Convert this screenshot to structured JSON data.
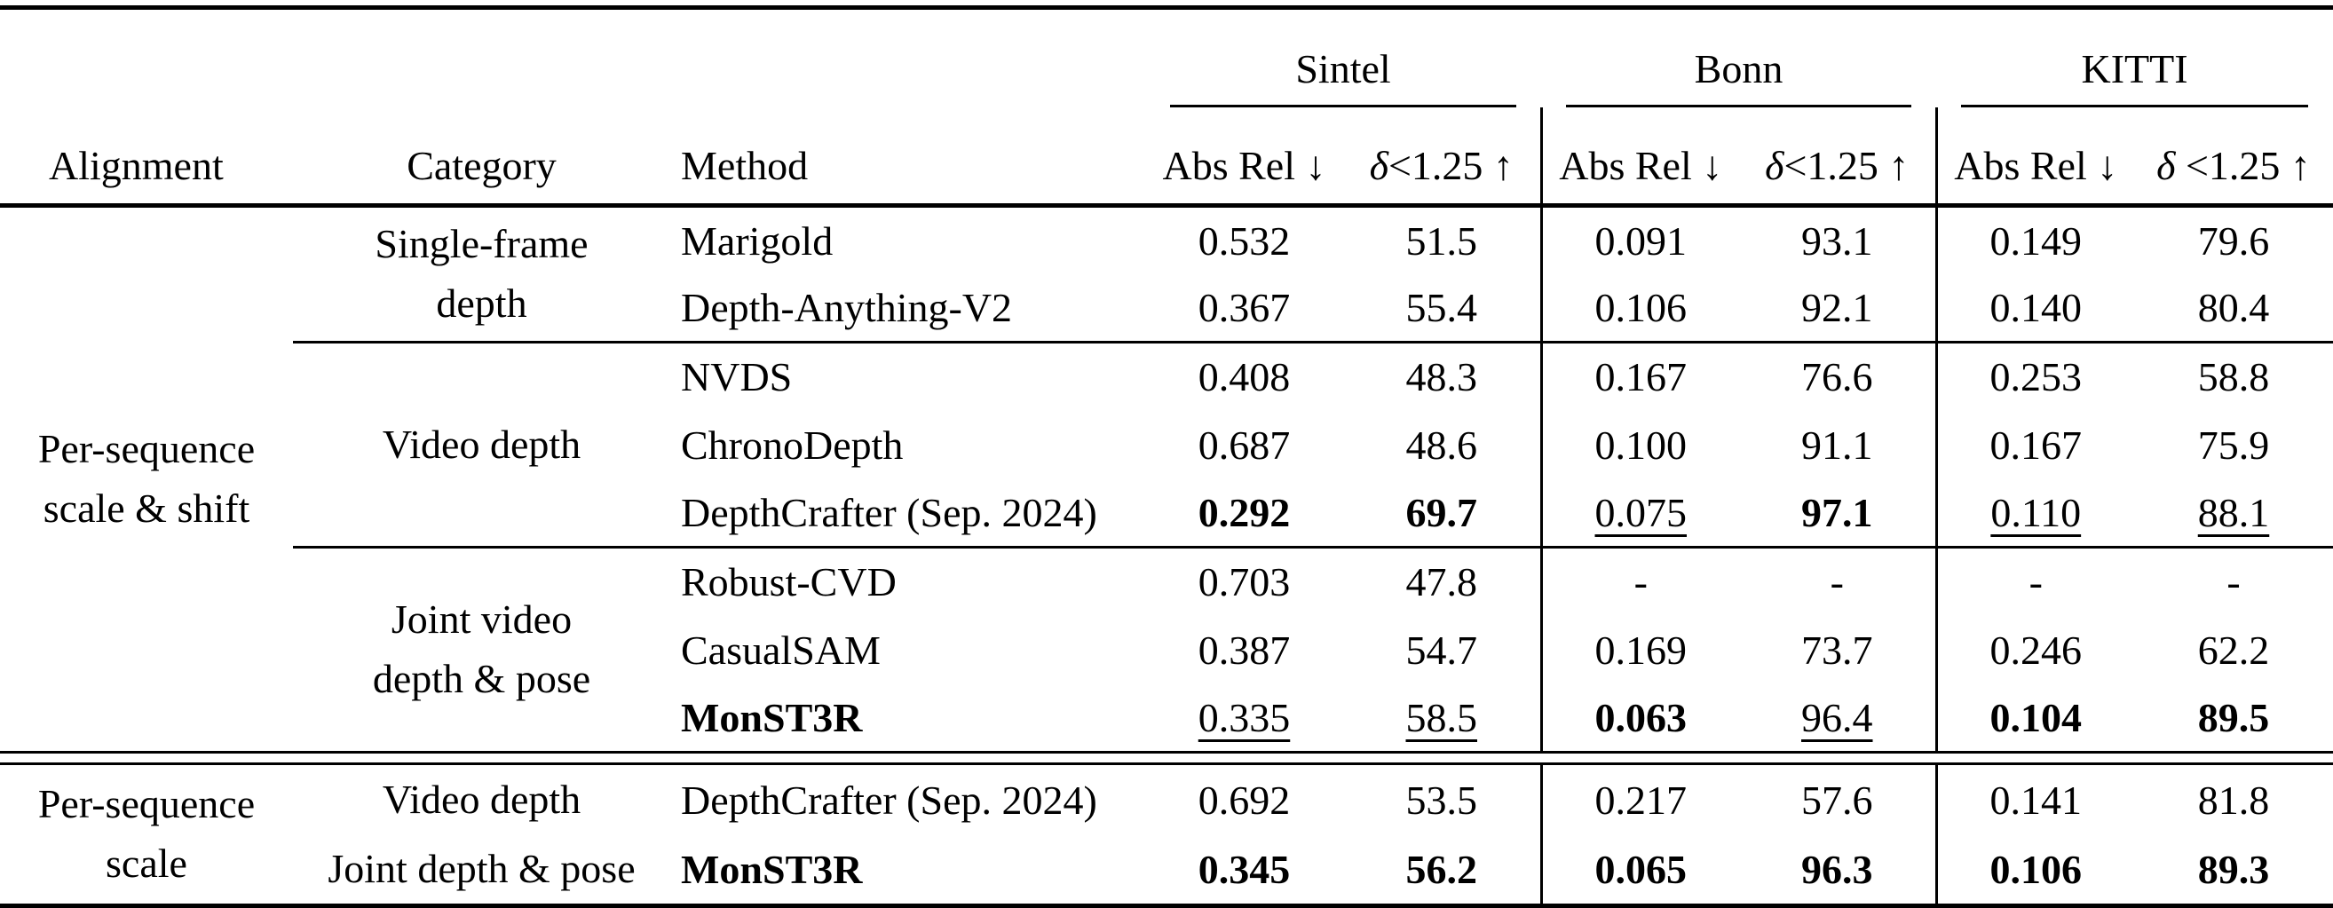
{
  "colors": {
    "text": "#000000",
    "rules": "#000000",
    "background": "#ffffff"
  },
  "table": {
    "headers": {
      "alignment": "Alignment",
      "category": "Category",
      "method": "Method"
    },
    "groups": [
      {
        "name": "Sintel",
        "metrics": [
          "Abs Rel ↓",
          "δ<1.25 ↑"
        ]
      },
      {
        "name": "Bonn",
        "metrics": [
          "Abs Rel ↓",
          "δ<1.25 ↑"
        ]
      },
      {
        "name": "KITTI",
        "metrics": [
          "Abs Rel ↓",
          "δ <1.25 ↑"
        ]
      }
    ],
    "sections": [
      {
        "alignment": "Per-sequence\nscale & shift",
        "groups": [
          {
            "category": "Single-frame\ndepth",
            "rows": [
              {
                "method": "Marigold",
                "bold_method": false,
                "values": [
                  {
                    "t": "0.532"
                  },
                  {
                    "t": "51.5"
                  },
                  {
                    "t": "0.091"
                  },
                  {
                    "t": "93.1"
                  },
                  {
                    "t": "0.149"
                  },
                  {
                    "t": "79.6"
                  }
                ]
              },
              {
                "method": "Depth-Anything-V2",
                "bold_method": false,
                "values": [
                  {
                    "t": "0.367"
                  },
                  {
                    "t": "55.4"
                  },
                  {
                    "t": "0.106"
                  },
                  {
                    "t": "92.1"
                  },
                  {
                    "t": "0.140"
                  },
                  {
                    "t": "80.4"
                  }
                ]
              }
            ]
          },
          {
            "category": "Video depth",
            "rows": [
              {
                "method": "NVDS",
                "bold_method": false,
                "values": [
                  {
                    "t": "0.408"
                  },
                  {
                    "t": "48.3"
                  },
                  {
                    "t": "0.167"
                  },
                  {
                    "t": "76.6"
                  },
                  {
                    "t": "0.253"
                  },
                  {
                    "t": "58.8"
                  }
                ]
              },
              {
                "method": "ChronoDepth",
                "bold_method": false,
                "values": [
                  {
                    "t": "0.687"
                  },
                  {
                    "t": "48.6"
                  },
                  {
                    "t": "0.100"
                  },
                  {
                    "t": "91.1"
                  },
                  {
                    "t": "0.167"
                  },
                  {
                    "t": "75.9"
                  }
                ]
              },
              {
                "method": "DepthCrafter (Sep. 2024)",
                "bold_method": false,
                "values": [
                  {
                    "t": "0.292",
                    "s": "bold"
                  },
                  {
                    "t": "69.7",
                    "s": "bold"
                  },
                  {
                    "t": "0.075",
                    "s": "underline"
                  },
                  {
                    "t": "97.1",
                    "s": "bold"
                  },
                  {
                    "t": "0.110",
                    "s": "underline"
                  },
                  {
                    "t": "88.1",
                    "s": "underline"
                  }
                ]
              }
            ]
          },
          {
            "category": "Joint video\ndepth & pose",
            "rows": [
              {
                "method": "Robust-CVD",
                "bold_method": false,
                "values": [
                  {
                    "t": "0.703"
                  },
                  {
                    "t": "47.8"
                  },
                  {
                    "t": "-"
                  },
                  {
                    "t": "-"
                  },
                  {
                    "t": "-"
                  },
                  {
                    "t": "-"
                  }
                ]
              },
              {
                "method": "CasualSAM",
                "bold_method": false,
                "values": [
                  {
                    "t": "0.387"
                  },
                  {
                    "t": "54.7"
                  },
                  {
                    "t": "0.169"
                  },
                  {
                    "t": "73.7"
                  },
                  {
                    "t": "0.246"
                  },
                  {
                    "t": "62.2"
                  }
                ]
              },
              {
                "method": "MonST3R",
                "bold_method": true,
                "values": [
                  {
                    "t": "0.335",
                    "s": "underline"
                  },
                  {
                    "t": "58.5",
                    "s": "underline"
                  },
                  {
                    "t": "0.063",
                    "s": "bold"
                  },
                  {
                    "t": "96.4",
                    "s": "underline"
                  },
                  {
                    "t": "0.104",
                    "s": "bold"
                  },
                  {
                    "t": "89.5",
                    "s": "bold"
                  }
                ]
              }
            ]
          }
        ]
      },
      {
        "alignment": "Per-sequence\nscale",
        "groups": [
          {
            "category": "Video depth",
            "rows": [
              {
                "method": "DepthCrafter (Sep. 2024)",
                "bold_method": false,
                "values": [
                  {
                    "t": "0.692"
                  },
                  {
                    "t": "53.5"
                  },
                  {
                    "t": "0.217"
                  },
                  {
                    "t": "57.6"
                  },
                  {
                    "t": "0.141"
                  },
                  {
                    "t": "81.8"
                  }
                ]
              }
            ]
          },
          {
            "category": "Joint depth & pose",
            "rows": [
              {
                "method": "MonST3R",
                "bold_method": true,
                "values": [
                  {
                    "t": "0.345",
                    "s": "bold"
                  },
                  {
                    "t": "56.2",
                    "s": "bold"
                  },
                  {
                    "t": "0.065",
                    "s": "bold"
                  },
                  {
                    "t": "96.3",
                    "s": "bold"
                  },
                  {
                    "t": "0.106",
                    "s": "bold"
                  },
                  {
                    "t": "89.3",
                    "s": "bold"
                  }
                ]
              }
            ]
          }
        ]
      }
    ]
  }
}
